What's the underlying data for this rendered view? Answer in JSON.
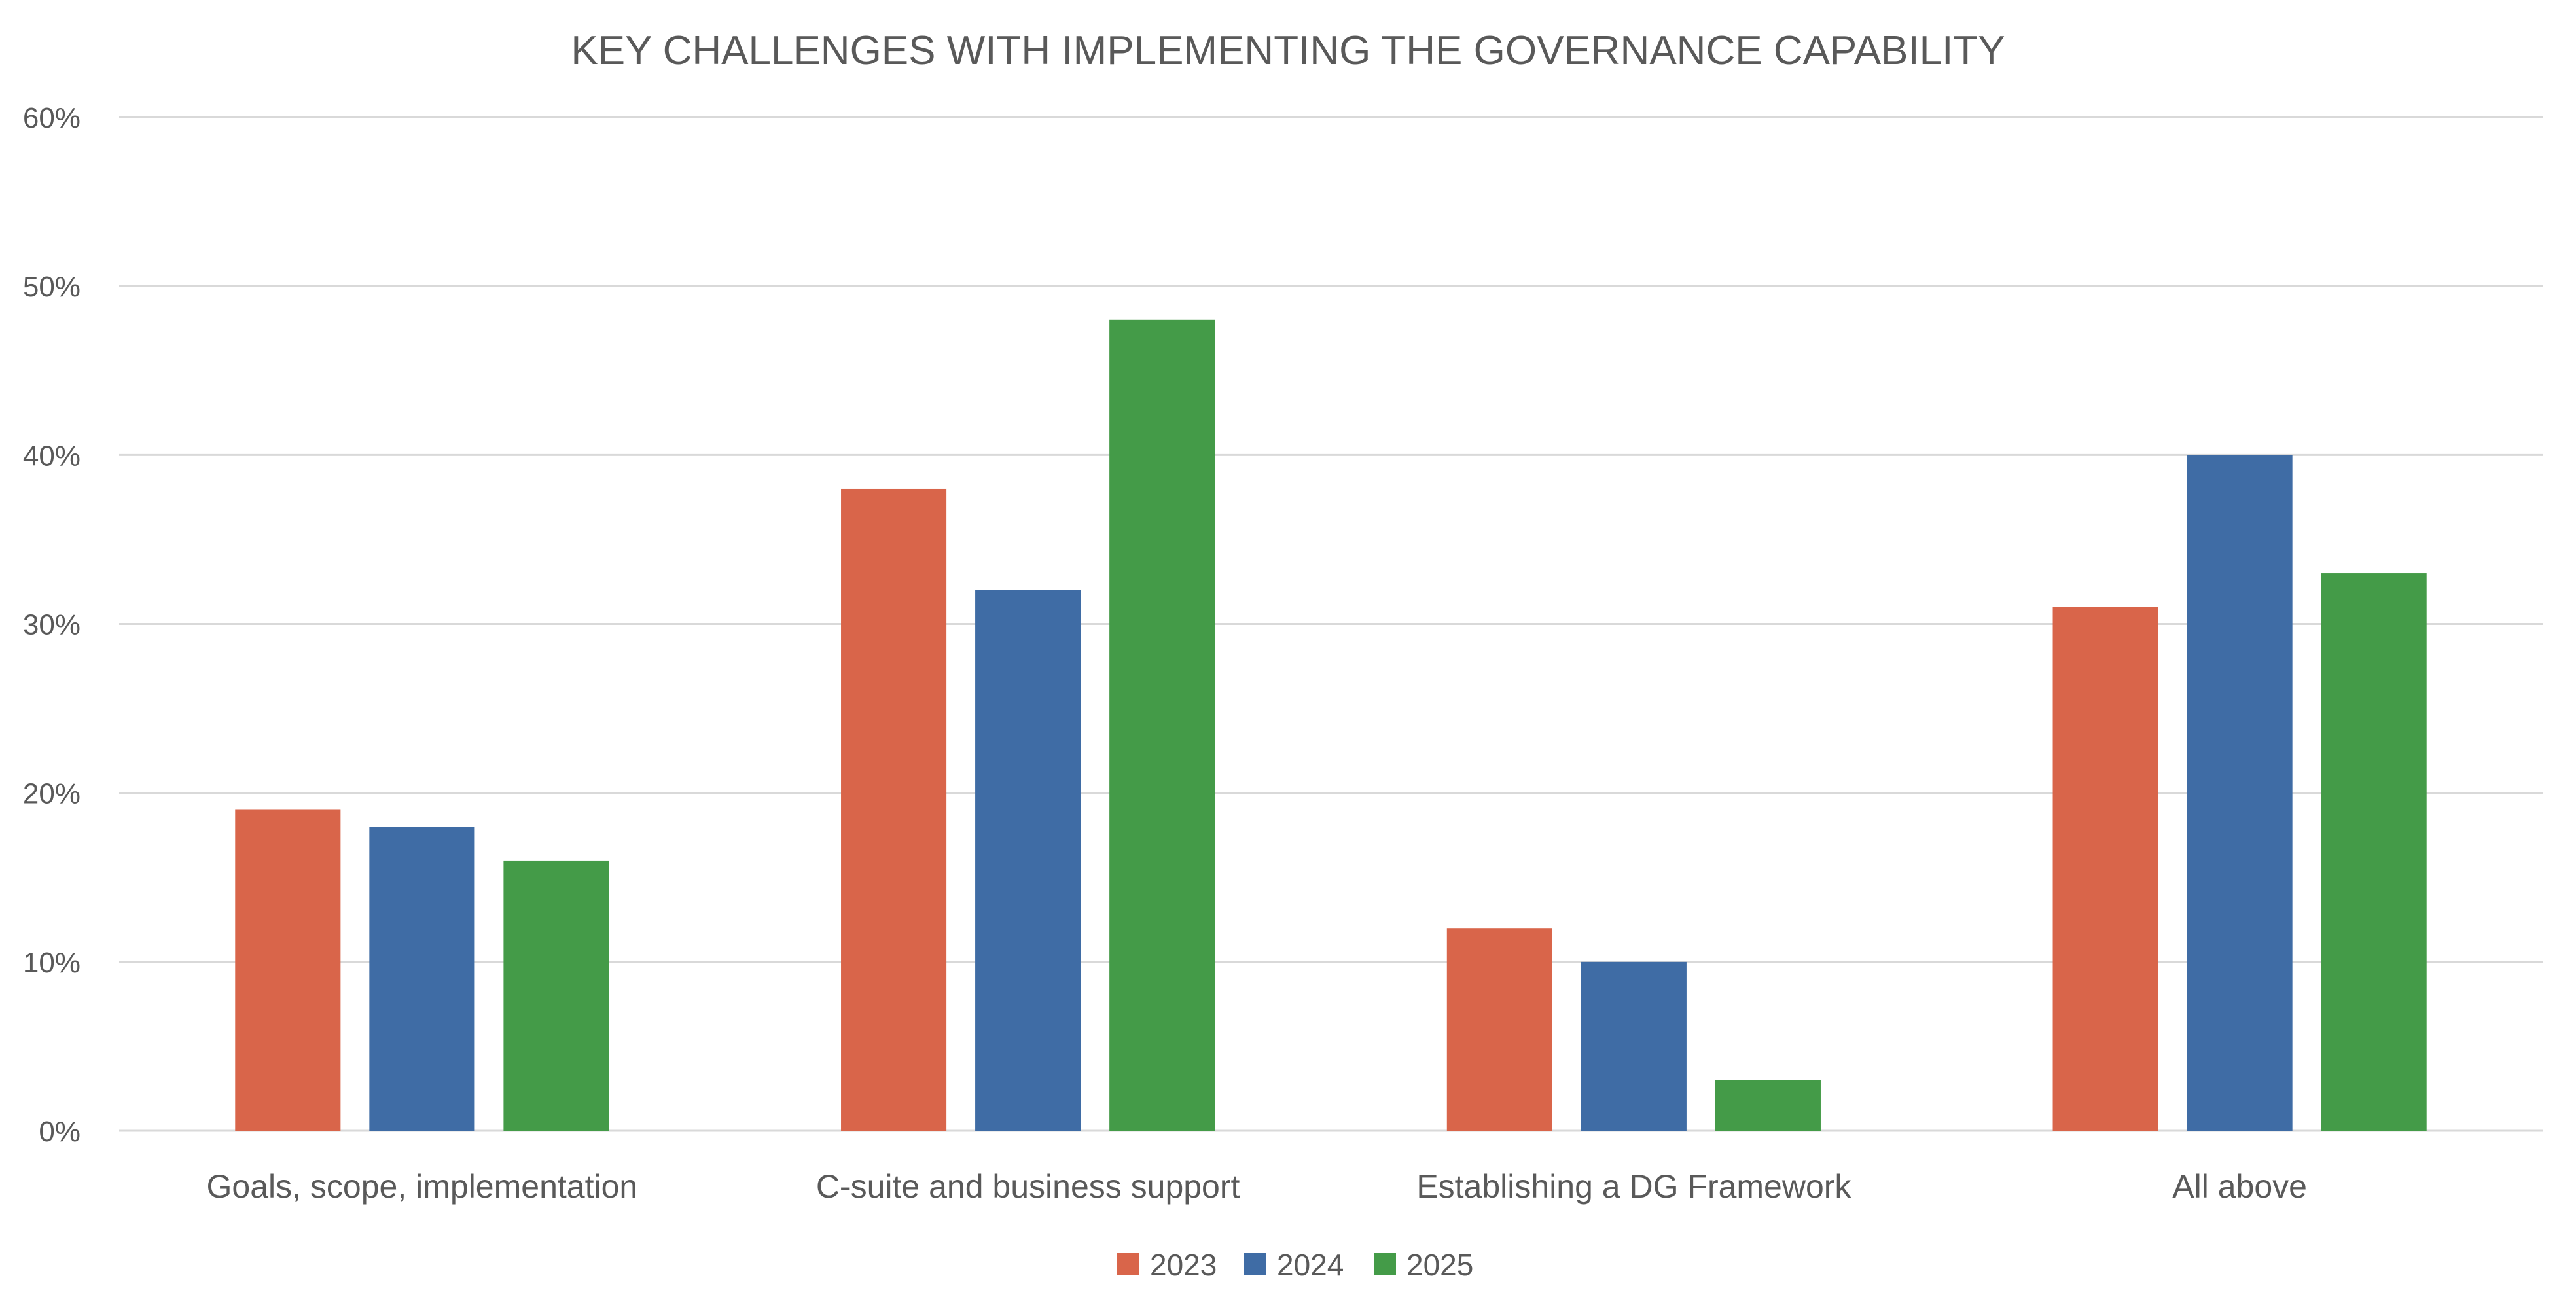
{
  "chart_data": {
    "type": "bar",
    "title": "KEY CHALLENGES WITH IMPLEMENTING THE GOVERNANCE CAPABILITY",
    "xlabel": "",
    "ylabel": "",
    "categories": [
      "Goals, scope, implementation",
      "C-suite and business support",
      "Establishing a DG Framework",
      "All above"
    ],
    "series": [
      {
        "name": "2023",
        "color": "#d9654a",
        "values": [
          19,
          38,
          12,
          31
        ]
      },
      {
        "name": "2024",
        "color": "#3f6ca5",
        "values": [
          18,
          32,
          10,
          40
        ]
      },
      {
        "name": "2025",
        "color": "#449b48",
        "values": [
          16,
          48,
          3,
          33
        ]
      }
    ],
    "ylim": [
      0,
      60
    ],
    "yticks": [
      0,
      10,
      20,
      30,
      40,
      50,
      60
    ],
    "ytick_labels": [
      "0%",
      "10%",
      "20%",
      "30%",
      "40%",
      "50%",
      "60%"
    ],
    "y_unit": "%",
    "grid": true,
    "legend_position": "bottom-center"
  }
}
